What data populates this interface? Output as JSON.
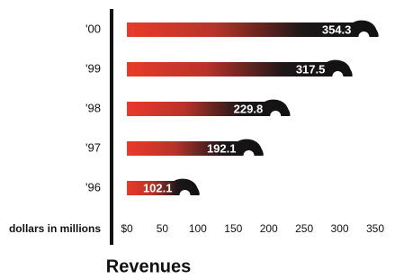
{
  "chart_data": {
    "type": "bar",
    "orientation": "horizontal",
    "title": "Revenues",
    "x_label": "dollars in millions",
    "categories": [
      "'00",
      "'99",
      "'98",
      "'97",
      "'96"
    ],
    "values": [
      354.3,
      317.5,
      229.8,
      192.1,
      102.1
    ],
    "color": "#e8372a",
    "xlim": [
      0,
      350
    ],
    "xticks": [
      {
        "value": 0,
        "label": "$0"
      },
      50,
      100,
      150,
      200,
      250,
      300,
      350
    ],
    "grid": false
  }
}
